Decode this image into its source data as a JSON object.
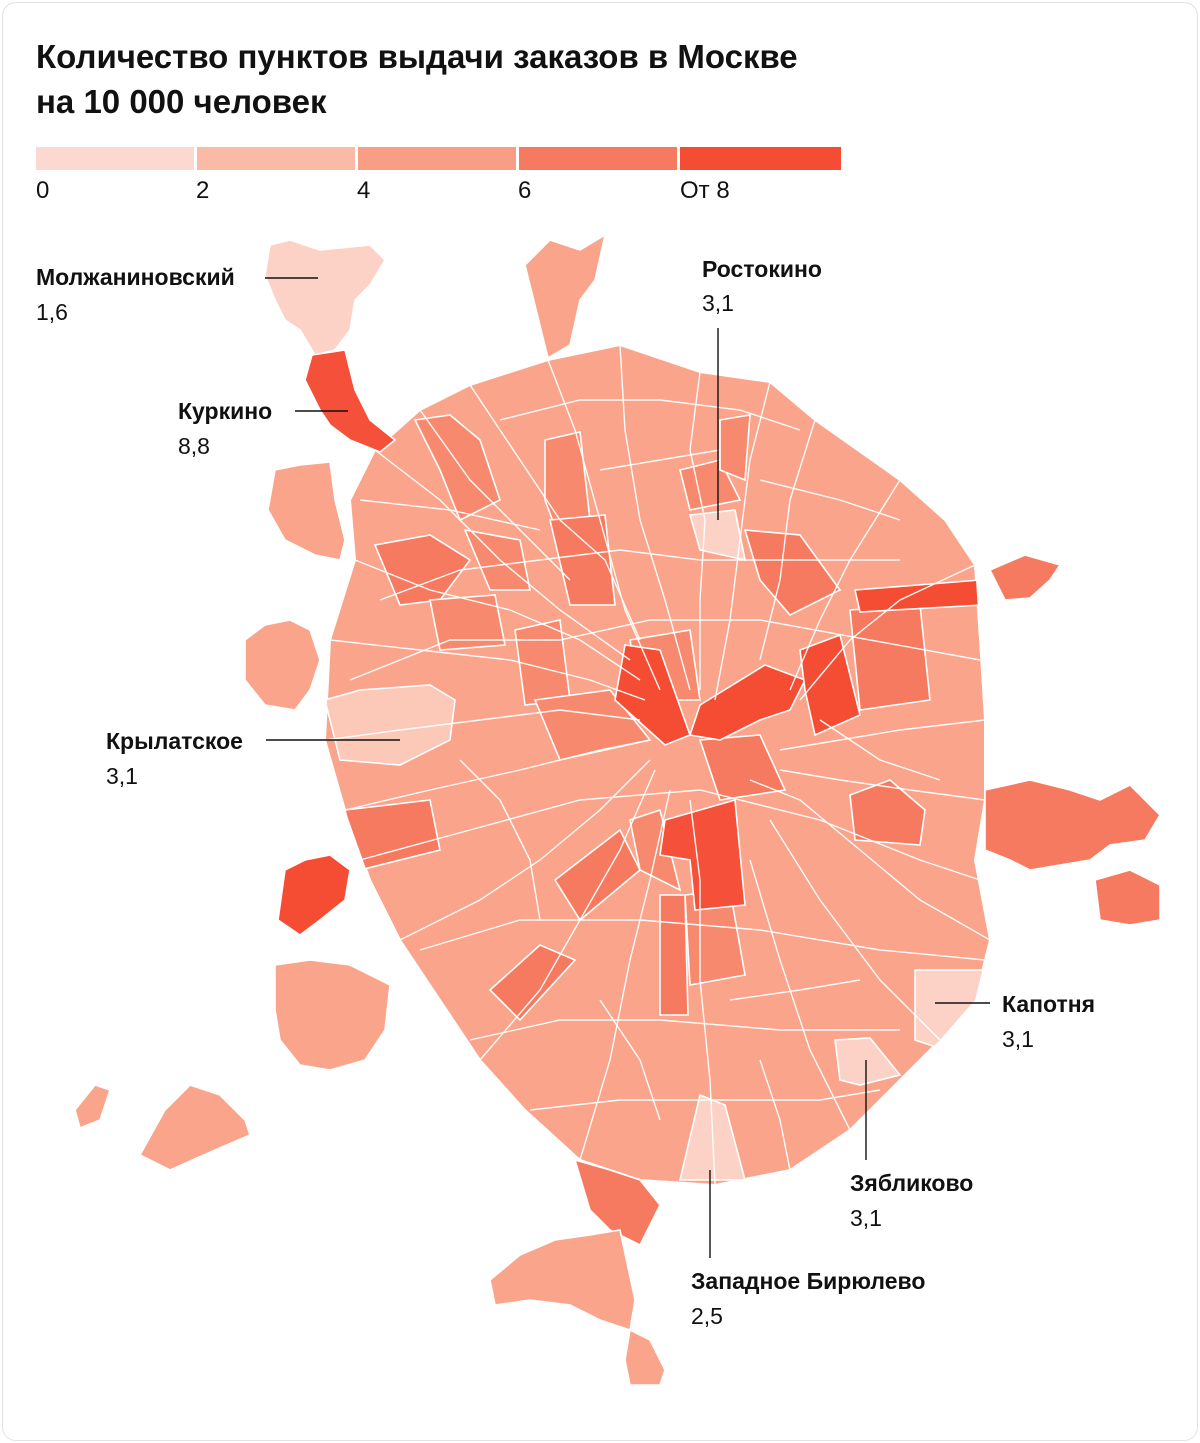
{
  "title_line1": "Количество пунктов выдачи заказов в Москве",
  "title_line2": "на 10 000 человек",
  "legend": {
    "colors": [
      "#fcd9d0",
      "#fbbaa6",
      "#f89e85",
      "#f57a60",
      "#f44d33"
    ],
    "ticks": [
      "0",
      "2",
      "4",
      "6",
      "От 8"
    ]
  },
  "callouts": [
    {
      "key": "molzh",
      "name": "Молжаниновский",
      "value": "1,6"
    },
    {
      "key": "kurkino",
      "name": "Куркино",
      "value": "8,8"
    },
    {
      "key": "rostokino",
      "name": "Ростокино",
      "value": "3,1"
    },
    {
      "key": "krylatskoe",
      "name": "Крылатское",
      "value": "3,1"
    },
    {
      "key": "kapotnya",
      "name": "Капотня",
      "value": "3,1"
    },
    {
      "key": "zyablikovo",
      "name": "Зябликово",
      "value": "3,1"
    },
    {
      "key": "biryulevo",
      "name": "Западное Бирюлево",
      "value": "2,5"
    }
  ],
  "map_data": {
    "type": "choropleth",
    "region": "Москва",
    "districts": [
      {
        "name": "Молжаниновский",
        "value": 1.6
      },
      {
        "name": "Куркино",
        "value": 8.8
      },
      {
        "name": "Ростокино",
        "value": 3.1
      },
      {
        "name": "Крылатское",
        "value": 3.1
      },
      {
        "name": "Капотня",
        "value": 3.1
      },
      {
        "name": "Зябликово",
        "value": 3.1
      },
      {
        "name": "Западное Бирюлево",
        "value": 2.5
      }
    ]
  }
}
